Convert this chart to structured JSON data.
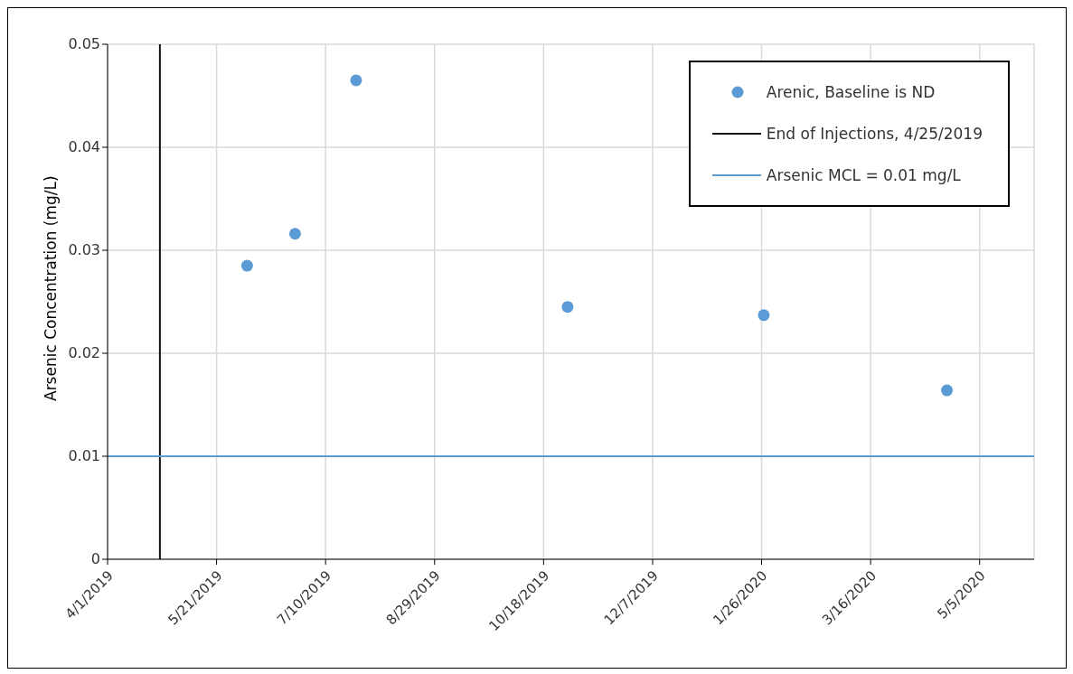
{
  "chart_data": {
    "type": "scatter",
    "ylabel": "Arsenic Concentration (mg/L)",
    "x": [
      "2019-06-04",
      "2019-06-26",
      "2019-07-24",
      "2019-10-29",
      "2020-01-27",
      "2020-04-20"
    ],
    "series": [
      {
        "name": "Arenic, Baseline is ND",
        "color": "#5b9bd5",
        "values": [
          0.0285,
          0.0316,
          0.0465,
          0.0245,
          0.0237,
          0.0164
        ]
      }
    ],
    "marker": "circle",
    "xlim": [
      "2019-04-01",
      "2020-05-30"
    ],
    "xticks": [
      {
        "value": "2019-04-01",
        "label": "4/1/2019"
      },
      {
        "value": "2019-05-21",
        "label": "5/21/2019"
      },
      {
        "value": "2019-07-10",
        "label": "7/10/2019"
      },
      {
        "value": "2019-08-29",
        "label": "8/29/2019"
      },
      {
        "value": "2019-10-18",
        "label": "10/18/2019"
      },
      {
        "value": "2019-12-07",
        "label": "12/7/2019"
      },
      {
        "value": "2020-01-26",
        "label": "1/26/2020"
      },
      {
        "value": "2020-03-16",
        "label": "3/16/2020"
      },
      {
        "value": "2020-05-05",
        "label": "5/5/2020"
      }
    ],
    "ylim": [
      0,
      0.05
    ],
    "yticks": [
      0,
      0.01,
      0.02,
      0.03,
      0.04,
      0.05
    ],
    "ref_lines": [
      {
        "axis": "x",
        "value": "2019-04-25",
        "label": "End of Injections, 4/25/2019",
        "color": "#111111"
      },
      {
        "axis": "y",
        "value": 0.01,
        "label": "Arsenic MCL = 0.01 mg/L",
        "color": "#5b9bd5"
      }
    ],
    "grid": true,
    "legend": "top right"
  }
}
